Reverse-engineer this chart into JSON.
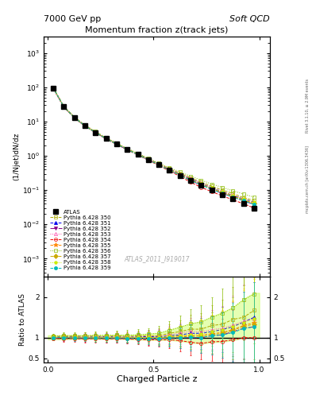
{
  "title_main": "Momentum fraction z(track jets)",
  "header_left": "7000 GeV pp",
  "header_right": "Soft QCD",
  "ylabel_main": "(1/Njet)dN/dz",
  "ylabel_ratio": "Ratio to ATLAS",
  "xlabel": "Charged Particle z",
  "watermark": "ATLAS_2011_I919017",
  "right_label": "Rivet 3.1.10, ≥ 2.9M events",
  "right_label2": "mcplots.cern.ch [arXiv:1306.3436]",
  "ylim_main": [
    0.0003,
    3000
  ],
  "ylim_ratio": [
    0.4,
    2.5
  ],
  "xlim": [
    -0.02,
    1.05
  ],
  "series": [
    {
      "label": "ATLAS",
      "color": "#000000",
      "marker": "s",
      "markersize": 4,
      "filled": true,
      "linestyle": "none",
      "zorder": 10,
      "x": [
        0.025,
        0.075,
        0.125,
        0.175,
        0.225,
        0.275,
        0.325,
        0.375,
        0.425,
        0.475,
        0.525,
        0.575,
        0.625,
        0.675,
        0.725,
        0.775,
        0.825,
        0.875,
        0.925,
        0.975
      ],
      "y": [
        95,
        27,
        13,
        7.5,
        4.8,
        3.2,
        2.2,
        1.55,
        1.1,
        0.78,
        0.55,
        0.38,
        0.27,
        0.19,
        0.14,
        0.1,
        0.075,
        0.055,
        0.04,
        0.03
      ],
      "yerr": [
        3,
        1.2,
        0.6,
        0.35,
        0.22,
        0.15,
        0.1,
        0.07,
        0.05,
        0.035,
        0.025,
        0.018,
        0.013,
        0.009,
        0.007,
        0.005,
        0.004,
        0.003,
        0.002,
        0.0015
      ]
    },
    {
      "label": "Pythia 6.428 350",
      "color": "#aaaa00",
      "marker": "s",
      "markersize": 3,
      "filled": false,
      "linestyle": "--",
      "zorder": 5,
      "x": [
        0.025,
        0.075,
        0.125,
        0.175,
        0.225,
        0.275,
        0.325,
        0.375,
        0.425,
        0.475,
        0.525,
        0.575,
        0.625,
        0.675,
        0.725,
        0.775,
        0.825,
        0.875,
        0.925,
        0.975
      ],
      "y": [
        98,
        28,
        13.5,
        7.8,
        5.0,
        3.3,
        2.3,
        1.6,
        1.15,
        0.82,
        0.58,
        0.42,
        0.31,
        0.23,
        0.17,
        0.13,
        0.1,
        0.08,
        0.06,
        0.05
      ],
      "ratio": [
        1.03,
        1.04,
        1.04,
        1.04,
        1.04,
        1.03,
        1.05,
        1.03,
        1.05,
        1.05,
        1.05,
        1.11,
        1.15,
        1.21,
        1.21,
        1.3,
        1.33,
        1.45,
        1.5,
        1.67
      ],
      "ratio_err": [
        0.06,
        0.08,
        0.08,
        0.09,
        0.1,
        0.1,
        0.11,
        0.12,
        0.13,
        0.15,
        0.18,
        0.22,
        0.28,
        0.35,
        0.4,
        0.5,
        0.6,
        0.8,
        1.0,
        1.2
      ]
    },
    {
      "label": "Pythia 6.428 351",
      "color": "#0000ee",
      "marker": "^",
      "markersize": 3,
      "filled": true,
      "linestyle": "--",
      "zorder": 5,
      "x": [
        0.025,
        0.075,
        0.125,
        0.175,
        0.225,
        0.275,
        0.325,
        0.375,
        0.425,
        0.475,
        0.525,
        0.575,
        0.625,
        0.675,
        0.725,
        0.775,
        0.825,
        0.875,
        0.925,
        0.975
      ],
      "y": [
        96,
        27.5,
        13.2,
        7.6,
        4.9,
        3.25,
        2.25,
        1.57,
        1.12,
        0.8,
        0.56,
        0.4,
        0.29,
        0.21,
        0.155,
        0.115,
        0.09,
        0.07,
        0.055,
        0.045
      ],
      "ratio": [
        1.01,
        1.02,
        1.02,
        1.01,
        1.02,
        1.02,
        1.02,
        1.01,
        1.02,
        1.03,
        1.02,
        1.05,
        1.07,
        1.11,
        1.11,
        1.15,
        1.2,
        1.27,
        1.38,
        1.5
      ],
      "ratio_err": [
        0.05,
        0.07,
        0.07,
        0.08,
        0.09,
        0.09,
        0.1,
        0.11,
        0.12,
        0.14,
        0.17,
        0.21,
        0.26,
        0.32,
        0.38,
        0.47,
        0.55,
        0.72,
        0.9,
        1.1
      ]
    },
    {
      "label": "Pythia 6.428 352",
      "color": "#880088",
      "marker": "v",
      "markersize": 3,
      "filled": true,
      "linestyle": "-.",
      "zorder": 5,
      "x": [
        0.025,
        0.075,
        0.125,
        0.175,
        0.225,
        0.275,
        0.325,
        0.375,
        0.425,
        0.475,
        0.525,
        0.575,
        0.625,
        0.675,
        0.725,
        0.775,
        0.825,
        0.875,
        0.925,
        0.975
      ],
      "y": [
        94,
        26.8,
        12.9,
        7.4,
        4.75,
        3.15,
        2.18,
        1.52,
        1.08,
        0.76,
        0.54,
        0.38,
        0.27,
        0.19,
        0.14,
        0.105,
        0.08,
        0.063,
        0.049,
        0.038
      ],
      "ratio": [
        0.99,
        0.99,
        0.99,
        0.99,
        0.99,
        0.98,
        0.99,
        0.98,
        0.98,
        0.97,
        0.98,
        1.0,
        1.0,
        1.0,
        1.0,
        1.05,
        1.07,
        1.15,
        1.23,
        1.27
      ],
      "ratio_err": [
        0.05,
        0.07,
        0.07,
        0.08,
        0.09,
        0.09,
        0.1,
        0.11,
        0.12,
        0.14,
        0.17,
        0.21,
        0.26,
        0.32,
        0.38,
        0.47,
        0.55,
        0.72,
        0.9,
        1.1
      ]
    },
    {
      "label": "Pythia 6.428 353",
      "color": "#ff44aa",
      "marker": "^",
      "markersize": 3,
      "filled": false,
      "linestyle": ":",
      "zorder": 5,
      "x": [
        0.025,
        0.075,
        0.125,
        0.175,
        0.225,
        0.275,
        0.325,
        0.375,
        0.425,
        0.475,
        0.525,
        0.575,
        0.625,
        0.675,
        0.725,
        0.775,
        0.825,
        0.875,
        0.925,
        0.975
      ],
      "y": [
        97,
        27.8,
        13.3,
        7.7,
        4.95,
        3.28,
        2.27,
        1.58,
        1.13,
        0.81,
        0.57,
        0.41,
        0.3,
        0.22,
        0.16,
        0.12,
        0.092,
        0.072,
        0.056,
        0.044
      ],
      "ratio": [
        1.02,
        1.03,
        1.02,
        1.03,
        1.03,
        1.025,
        1.03,
        1.02,
        1.03,
        1.04,
        1.04,
        1.08,
        1.11,
        1.16,
        1.14,
        1.2,
        1.23,
        1.31,
        1.4,
        1.47
      ],
      "ratio_err": [
        0.05,
        0.07,
        0.07,
        0.08,
        0.09,
        0.09,
        0.1,
        0.11,
        0.12,
        0.14,
        0.17,
        0.21,
        0.26,
        0.32,
        0.38,
        0.47,
        0.55,
        0.72,
        0.9,
        1.1
      ]
    },
    {
      "label": "Pythia 6.428 354",
      "color": "#ee0000",
      "marker": "o",
      "markersize": 3,
      "filled": false,
      "linestyle": "--",
      "zorder": 5,
      "x": [
        0.025,
        0.075,
        0.125,
        0.175,
        0.225,
        0.275,
        0.325,
        0.375,
        0.425,
        0.475,
        0.525,
        0.575,
        0.625,
        0.675,
        0.725,
        0.775,
        0.825,
        0.875,
        0.925,
        0.975
      ],
      "y": [
        93,
        26.5,
        12.7,
        7.3,
        4.7,
        3.1,
        2.15,
        1.5,
        1.06,
        0.74,
        0.52,
        0.36,
        0.25,
        0.17,
        0.12,
        0.09,
        0.068,
        0.052,
        0.04,
        0.03
      ],
      "ratio": [
        0.98,
        0.98,
        0.98,
        0.97,
        0.98,
        0.97,
        0.98,
        0.97,
        0.96,
        0.95,
        0.95,
        0.95,
        0.93,
        0.89,
        0.86,
        0.9,
        0.91,
        0.95,
        1.0,
        1.0
      ],
      "ratio_err": [
        0.05,
        0.07,
        0.07,
        0.08,
        0.09,
        0.09,
        0.1,
        0.11,
        0.12,
        0.14,
        0.17,
        0.21,
        0.26,
        0.32,
        0.38,
        0.47,
        0.55,
        0.72,
        0.9,
        1.1
      ]
    },
    {
      "label": "Pythia 6.428 355",
      "color": "#ff8800",
      "marker": "*",
      "markersize": 4,
      "filled": true,
      "linestyle": "--",
      "zorder": 5,
      "x": [
        0.025,
        0.075,
        0.125,
        0.175,
        0.225,
        0.275,
        0.325,
        0.375,
        0.425,
        0.475,
        0.525,
        0.575,
        0.625,
        0.675,
        0.725,
        0.775,
        0.825,
        0.875,
        0.925,
        0.975
      ],
      "y": [
        96,
        27.3,
        13.1,
        7.5,
        4.82,
        3.2,
        2.22,
        1.55,
        1.1,
        0.78,
        0.55,
        0.39,
        0.28,
        0.2,
        0.148,
        0.11,
        0.085,
        0.066,
        0.052,
        0.041
      ],
      "ratio": [
        1.01,
        1.01,
        1.01,
        1.0,
        1.0,
        1.0,
        1.01,
        1.0,
        1.0,
        1.0,
        1.0,
        1.03,
        1.04,
        1.05,
        1.06,
        1.1,
        1.13,
        1.2,
        1.3,
        1.37
      ],
      "ratio_err": [
        0.05,
        0.07,
        0.07,
        0.08,
        0.09,
        0.09,
        0.1,
        0.11,
        0.12,
        0.14,
        0.17,
        0.21,
        0.26,
        0.32,
        0.38,
        0.47,
        0.55,
        0.72,
        0.9,
        1.1
      ]
    },
    {
      "label": "Pythia 6.428 356",
      "color": "#88bb00",
      "marker": "s",
      "markersize": 3,
      "filled": false,
      "linestyle": ":",
      "zorder": 5,
      "x": [
        0.025,
        0.075,
        0.125,
        0.175,
        0.225,
        0.275,
        0.325,
        0.375,
        0.425,
        0.475,
        0.525,
        0.575,
        0.625,
        0.675,
        0.725,
        0.775,
        0.825,
        0.875,
        0.925,
        0.975
      ],
      "y": [
        99,
        28.5,
        13.7,
        7.9,
        5.1,
        3.4,
        2.35,
        1.65,
        1.18,
        0.85,
        0.61,
        0.45,
        0.34,
        0.255,
        0.195,
        0.15,
        0.12,
        0.095,
        0.077,
        0.062
      ],
      "ratio": [
        1.04,
        1.056,
        1.054,
        1.053,
        1.063,
        1.063,
        1.068,
        1.065,
        1.073,
        1.09,
        1.11,
        1.18,
        1.26,
        1.34,
        1.39,
        1.5,
        1.6,
        1.73,
        1.93,
        2.07
      ],
      "ratio_err": [
        0.06,
        0.08,
        0.08,
        0.09,
        0.1,
        0.1,
        0.11,
        0.12,
        0.13,
        0.15,
        0.18,
        0.22,
        0.28,
        0.35,
        0.4,
        0.5,
        0.6,
        0.8,
        1.0,
        1.2
      ]
    },
    {
      "label": "Pythia 6.428 357",
      "color": "#ccaa00",
      "marker": "D",
      "markersize": 3,
      "filled": true,
      "linestyle": "--",
      "zorder": 5,
      "x": [
        0.025,
        0.075,
        0.125,
        0.175,
        0.225,
        0.275,
        0.325,
        0.375,
        0.425,
        0.475,
        0.525,
        0.575,
        0.625,
        0.675,
        0.725,
        0.775,
        0.825,
        0.875,
        0.925,
        0.975
      ],
      "y": [
        95,
        27.2,
        13.0,
        7.5,
        4.8,
        3.18,
        2.2,
        1.54,
        1.09,
        0.77,
        0.545,
        0.385,
        0.275,
        0.197,
        0.145,
        0.108,
        0.083,
        0.065,
        0.051,
        0.04
      ],
      "ratio": [
        1.0,
        1.007,
        1.0,
        1.0,
        1.0,
        0.994,
        1.0,
        0.994,
        0.991,
        0.987,
        0.991,
        1.013,
        1.019,
        1.037,
        1.036,
        1.08,
        1.107,
        1.182,
        1.275,
        1.333
      ],
      "ratio_err": [
        0.05,
        0.07,
        0.07,
        0.08,
        0.09,
        0.09,
        0.1,
        0.11,
        0.12,
        0.14,
        0.17,
        0.21,
        0.26,
        0.32,
        0.38,
        0.47,
        0.55,
        0.72,
        0.9,
        1.1
      ]
    },
    {
      "label": "Pythia 6.428 358",
      "color": "#ccee00",
      "marker": "p",
      "markersize": 3,
      "filled": true,
      "linestyle": ":",
      "zorder": 5,
      "x": [
        0.025,
        0.075,
        0.125,
        0.175,
        0.225,
        0.275,
        0.325,
        0.375,
        0.425,
        0.475,
        0.525,
        0.575,
        0.625,
        0.675,
        0.725,
        0.775,
        0.825,
        0.875,
        0.925,
        0.975
      ],
      "y": [
        97,
        27.6,
        13.2,
        7.6,
        4.88,
        3.23,
        2.24,
        1.56,
        1.11,
        0.79,
        0.555,
        0.395,
        0.285,
        0.205,
        0.152,
        0.115,
        0.089,
        0.07,
        0.055,
        0.044
      ],
      "ratio": [
        1.02,
        1.022,
        1.015,
        1.013,
        1.017,
        1.009,
        1.018,
        1.006,
        1.009,
        1.013,
        1.009,
        1.039,
        1.056,
        1.079,
        1.086,
        1.15,
        1.187,
        1.273,
        1.375,
        1.467
      ],
      "ratio_err": [
        0.05,
        0.07,
        0.07,
        0.08,
        0.09,
        0.09,
        0.1,
        0.11,
        0.12,
        0.14,
        0.17,
        0.21,
        0.26,
        0.32,
        0.38,
        0.47,
        0.55,
        0.72,
        0.9,
        1.1
      ]
    },
    {
      "label": "Pythia 6.428 359",
      "color": "#00bbbb",
      "marker": "o",
      "markersize": 3,
      "filled": true,
      "linestyle": "--",
      "zorder": 5,
      "x": [
        0.025,
        0.075,
        0.125,
        0.175,
        0.225,
        0.275,
        0.325,
        0.375,
        0.425,
        0.475,
        0.525,
        0.575,
        0.625,
        0.675,
        0.725,
        0.775,
        0.825,
        0.875,
        0.925,
        0.975
      ],
      "y": [
        95.5,
        27.1,
        12.95,
        7.45,
        4.78,
        3.16,
        2.19,
        1.53,
        1.085,
        0.765,
        0.54,
        0.38,
        0.27,
        0.192,
        0.141,
        0.105,
        0.08,
        0.062,
        0.049,
        0.038
      ],
      "ratio": [
        1.005,
        1.004,
        0.996,
        0.993,
        0.996,
        0.988,
        0.995,
        0.987,
        0.986,
        0.981,
        0.982,
        1.0,
        1.0,
        1.011,
        1.007,
        1.05,
        1.067,
        1.127,
        1.225,
        1.267
      ],
      "ratio_err": [
        0.05,
        0.07,
        0.07,
        0.08,
        0.09,
        0.09,
        0.1,
        0.11,
        0.12,
        0.14,
        0.17,
        0.21,
        0.26,
        0.32,
        0.38,
        0.47,
        0.55,
        0.72,
        0.9,
        1.1
      ]
    }
  ],
  "band_x": [
    0.0,
    0.025,
    0.075,
    0.125,
    0.175,
    0.225,
    0.275,
    0.325,
    0.375,
    0.425,
    0.475,
    0.525,
    0.575,
    0.625,
    0.675,
    0.725,
    0.775,
    0.825,
    0.875,
    0.925,
    0.975,
    1.0
  ],
  "band_upper": [
    1.06,
    1.06,
    1.06,
    1.06,
    1.06,
    1.065,
    1.065,
    1.07,
    1.07,
    1.08,
    1.1,
    1.12,
    1.2,
    1.27,
    1.35,
    1.4,
    1.52,
    1.62,
    1.75,
    1.95,
    2.1,
    2.1
  ],
  "band_lower": [
    0.96,
    0.96,
    0.96,
    0.97,
    0.97,
    0.97,
    0.965,
    0.97,
    0.965,
    0.955,
    0.945,
    0.945,
    0.945,
    0.92,
    0.88,
    0.855,
    0.89,
    0.9,
    0.94,
    0.99,
    0.99,
    0.99
  ],
  "band_color": "#ccff66",
  "band_alpha": 0.5
}
